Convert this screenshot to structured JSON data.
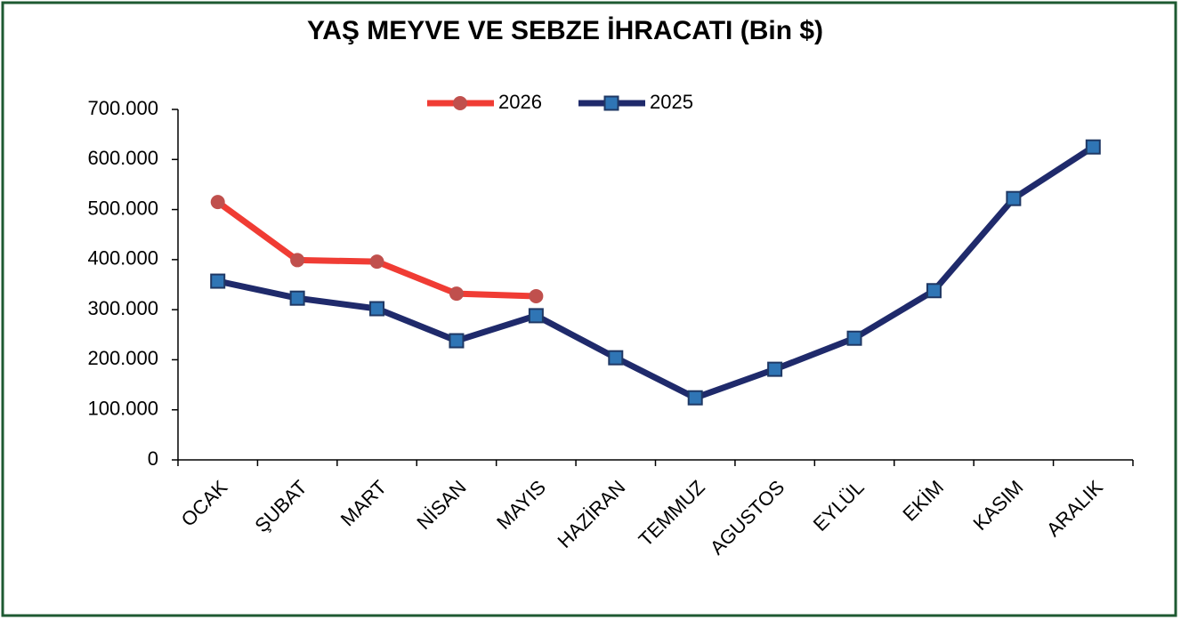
{
  "chart_data": {
    "type": "line",
    "title": "YAŞ MEYVE VE SEBZE İHRACATI (Bin $)",
    "categories": [
      "OCAK",
      "ŞUBAT",
      "MART",
      "NİSAN",
      "MAYIS",
      "HAZİRAN",
      "TEMMUZ",
      "AGUSTOS",
      "EYLÜL",
      "EKİM",
      "KASIM",
      "ARALIK"
    ],
    "series": [
      {
        "name": "2026",
        "color": "#f03c34",
        "marker_color": "#c0504d",
        "marker": "circle",
        "values": [
          515000,
          399000,
          396000,
          332000,
          327000,
          null,
          null,
          null,
          null,
          null,
          null,
          null
        ]
      },
      {
        "name": "2025",
        "color": "#1f2a6b",
        "marker_color": "#2f75b5",
        "marker": "square",
        "values": [
          357000,
          323000,
          302000,
          238000,
          288000,
          204000,
          124000,
          181000,
          243000,
          338000,
          522000,
          625000
        ]
      }
    ],
    "ylim": [
      0,
      700000
    ],
    "yticks": [
      0,
      {
        "value": 100000,
        "label": "100.000"
      },
      {
        "value": 200000,
        "label": "200.000"
      },
      {
        "value": 300000,
        "label": "300.000"
      },
      {
        "value": 400000,
        "label": "400.000"
      },
      {
        "value": 500000,
        "label": "500.000"
      },
      {
        "value": 600000,
        "label": "600.000"
      },
      {
        "value": 700000,
        "label": "700.000"
      }
    ],
    "grid": false,
    "legend": "top"
  }
}
